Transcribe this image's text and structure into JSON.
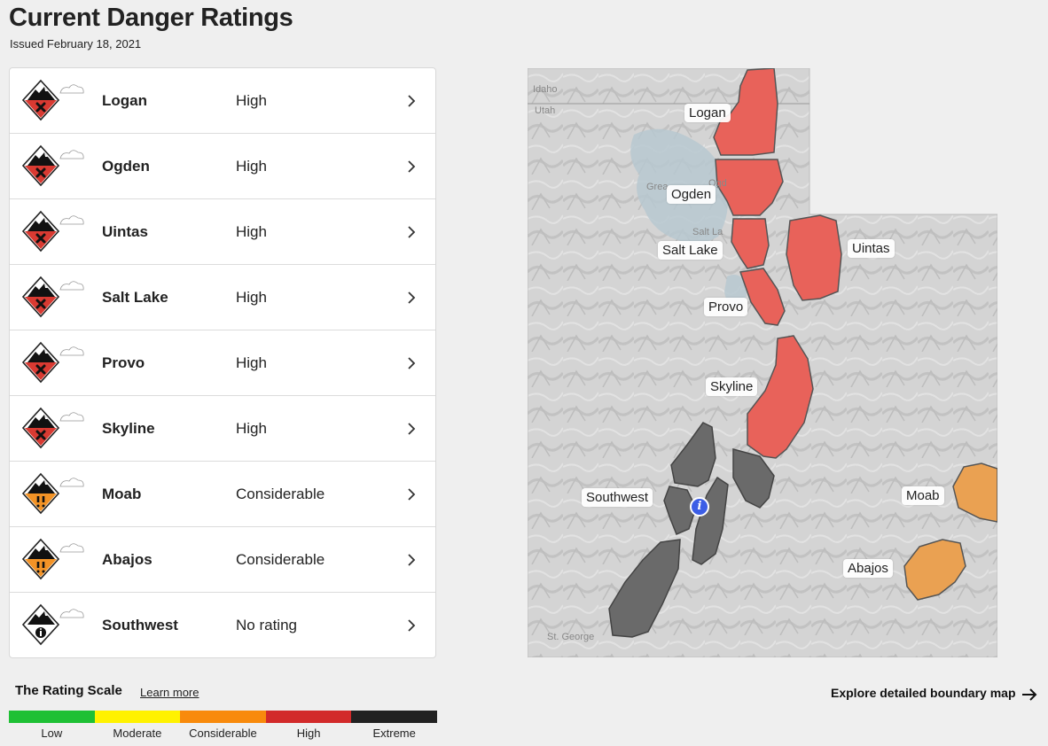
{
  "header": {
    "title": "Current Danger Ratings",
    "issued": "Issued February 18, 2021"
  },
  "regions": [
    {
      "name": "Logan",
      "rating": "High",
      "level": "high"
    },
    {
      "name": "Ogden",
      "rating": "High",
      "level": "high"
    },
    {
      "name": "Uintas",
      "rating": "High",
      "level": "high"
    },
    {
      "name": "Salt Lake",
      "rating": "High",
      "level": "high"
    },
    {
      "name": "Provo",
      "rating": "High",
      "level": "high"
    },
    {
      "name": "Skyline",
      "rating": "High",
      "level": "high"
    },
    {
      "name": "Moab",
      "rating": "Considerable",
      "level": "considerable"
    },
    {
      "name": "Abajos",
      "rating": "Considerable",
      "level": "considerable"
    },
    {
      "name": "Southwest",
      "rating": "No rating",
      "level": "none"
    }
  ],
  "map": {
    "labels": {
      "logan": "Logan",
      "ogden": "Ogden",
      "salt_lake": "Salt Lake",
      "uintas": "Uintas",
      "provo": "Provo",
      "skyline": "Skyline",
      "southwest": "Southwest",
      "moab": "Moab",
      "abajos": "Abajos"
    },
    "base_labels": {
      "idaho": "Idaho",
      "utah": "Utah",
      "great": "Grea",
      "ogden_city": "Ogd",
      "salt_lake_city": "Salt La",
      "st_george": "St. George"
    },
    "info_glyph": "i"
  },
  "scale": {
    "title": "The Rating Scale",
    "learn_more": "Learn more",
    "levels": [
      {
        "label": "Low",
        "color": "#1ec034"
      },
      {
        "label": "Moderate",
        "color": "#fff200"
      },
      {
        "label": "Considerable",
        "color": "#f88a0c"
      },
      {
        "label": "High",
        "color": "#d22a2a"
      },
      {
        "label": "Extreme",
        "color": "#222222"
      }
    ]
  },
  "explore_link": "Explore detailed boundary map",
  "colors": {
    "high": "#d93a32",
    "considerable": "#f39326",
    "map_high": "#e8625a",
    "map_considerable": "#eaa152",
    "map_none": "#6a6a6a"
  },
  "icons": {
    "row_icon": "danger-rating-icon",
    "row_chevron": "chevron-right-icon",
    "explore_arrow": "arrow-right-icon"
  }
}
